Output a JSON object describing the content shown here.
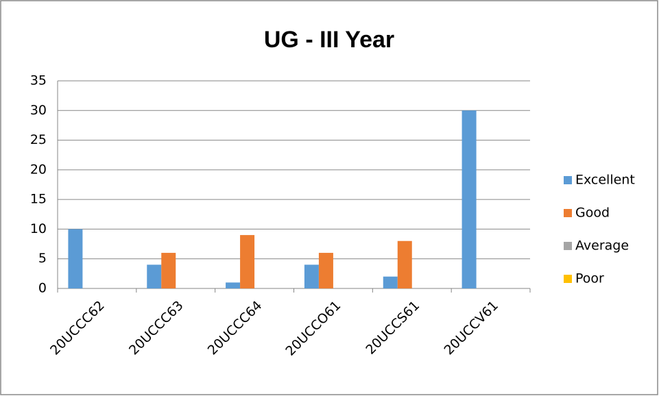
{
  "chart_data": {
    "type": "bar",
    "title": "UG - III Year",
    "categories": [
      "20UCCC62",
      "20UCCC63",
      "20UCCC64",
      "20UCCO61",
      "20UCCS61",
      "20UCCV61"
    ],
    "series": [
      {
        "name": "Excellent",
        "color": "#5b9bd5",
        "values": [
          10,
          4,
          1,
          4,
          2,
          30
        ]
      },
      {
        "name": "Good",
        "color": "#ed7d31",
        "values": [
          0,
          6,
          9,
          6,
          8,
          0
        ]
      },
      {
        "name": "Average",
        "color": "#a5a5a5",
        "values": [
          0,
          0,
          0,
          0,
          0,
          0
        ]
      },
      {
        "name": "Poor",
        "color": "#ffc000",
        "values": [
          0,
          0,
          0,
          0,
          0,
          0
        ]
      }
    ],
    "ylim": [
      0,
      35
    ],
    "yticks": [
      0,
      5,
      10,
      15,
      20,
      25,
      30,
      35
    ],
    "grid": true,
    "legend": "right"
  }
}
